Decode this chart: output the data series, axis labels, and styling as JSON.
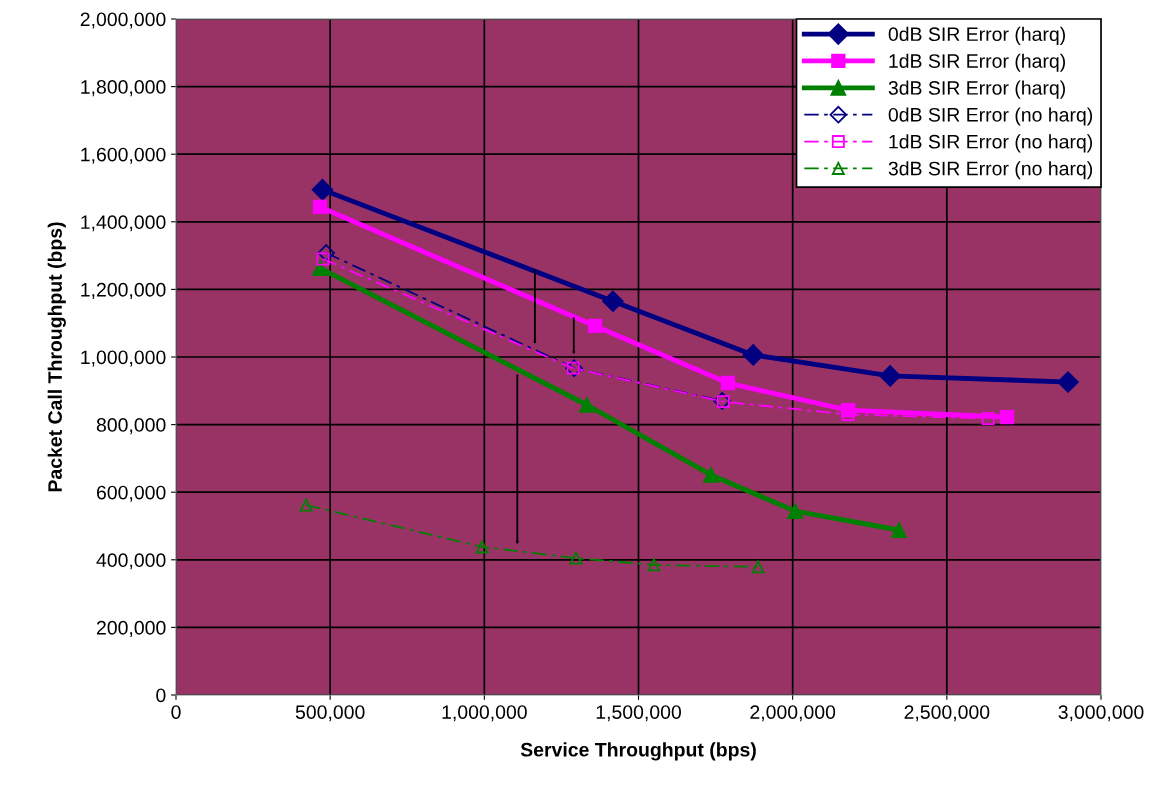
{
  "chart_data": {
    "type": "line",
    "xlabel": "Service Throughput (bps)",
    "ylabel": "Packet Call Throughput (bps)",
    "xlim": [
      0,
      3000000
    ],
    "ylim": [
      0,
      2000000
    ],
    "xticks": [
      0,
      {
        "value": 500000,
        "label": "500,000"
      },
      {
        "value": 1000000,
        "label": "1,000,000"
      },
      {
        "value": 1500000,
        "label": "1,500,000"
      },
      {
        "value": 2000000,
        "label": "2,000,000"
      },
      {
        "value": 2500000,
        "label": "2,500,000"
      },
      {
        "value": 3000000,
        "label": "3,000,000"
      }
    ],
    "yticks": [
      0,
      {
        "value": 200000,
        "label": "200,000"
      },
      {
        "value": 400000,
        "label": "400,000"
      },
      {
        "value": 600000,
        "label": "600,000"
      },
      {
        "value": 800000,
        "label": "800,000"
      },
      {
        "value": 1000000,
        "label": "1,000,000"
      },
      {
        "value": 1200000,
        "label": "1,200,000"
      },
      {
        "value": 1400000,
        "label": "1,400,000"
      },
      {
        "value": 1600000,
        "label": "1,600,000"
      },
      {
        "value": 1800000,
        "label": "1,800,000"
      },
      {
        "value": 2000000,
        "label": "2,000,000"
      }
    ],
    "grid": true,
    "legend": "top right",
    "series": [
      {
        "name": "0dB SIR Error (harq)",
        "color": "#000080",
        "marker": "diamond",
        "line_style": "solid",
        "x": [
          475000,
          1417000,
          1872000,
          2316000,
          2893000
        ],
        "values": [
          1495000,
          1165000,
          1006000,
          944000,
          926000
        ]
      },
      {
        "name": "1dB SIR Error (harq)",
        "color": "#ff00ff",
        "marker": "square",
        "line_style": "solid",
        "x": [
          467000,
          1359000,
          1790000,
          2180000,
          2695000
        ],
        "values": [
          1444000,
          1092000,
          923000,
          843000,
          822000
        ]
      },
      {
        "name": "3dB SIR Error (harq)",
        "color": "#008000",
        "marker": "triangle",
        "line_style": "solid",
        "x": [
          467000,
          1333000,
          1735000,
          2008000,
          2345000
        ],
        "values": [
          1263000,
          858000,
          651000,
          544000,
          488000
        ]
      },
      {
        "name": "0dB SIR Error (no harq)",
        "color": "#000080",
        "marker": "diamond",
        "line_style": "dashed",
        "x": [
          487000,
          1291000,
          1771000
        ],
        "values": [
          1308000,
          967000,
          870000
        ]
      },
      {
        "name": "1dB SIR Error (no harq)",
        "color": "#ff00ff",
        "marker": "square",
        "line_style": "dashed",
        "x": [
          477000,
          1288000,
          1775000,
          2180000,
          2634000
        ],
        "values": [
          1290000,
          967000,
          868000,
          830000,
          818000
        ]
      },
      {
        "name": "3dB SIR Error (no harq)",
        "color": "#008000",
        "marker": "triangle",
        "line_style": "dashed",
        "x": [
          422000,
          993000,
          1297000,
          1550000,
          1888000
        ],
        "values": [
          562000,
          438000,
          405000,
          385000,
          379000
        ]
      }
    ]
  }
}
